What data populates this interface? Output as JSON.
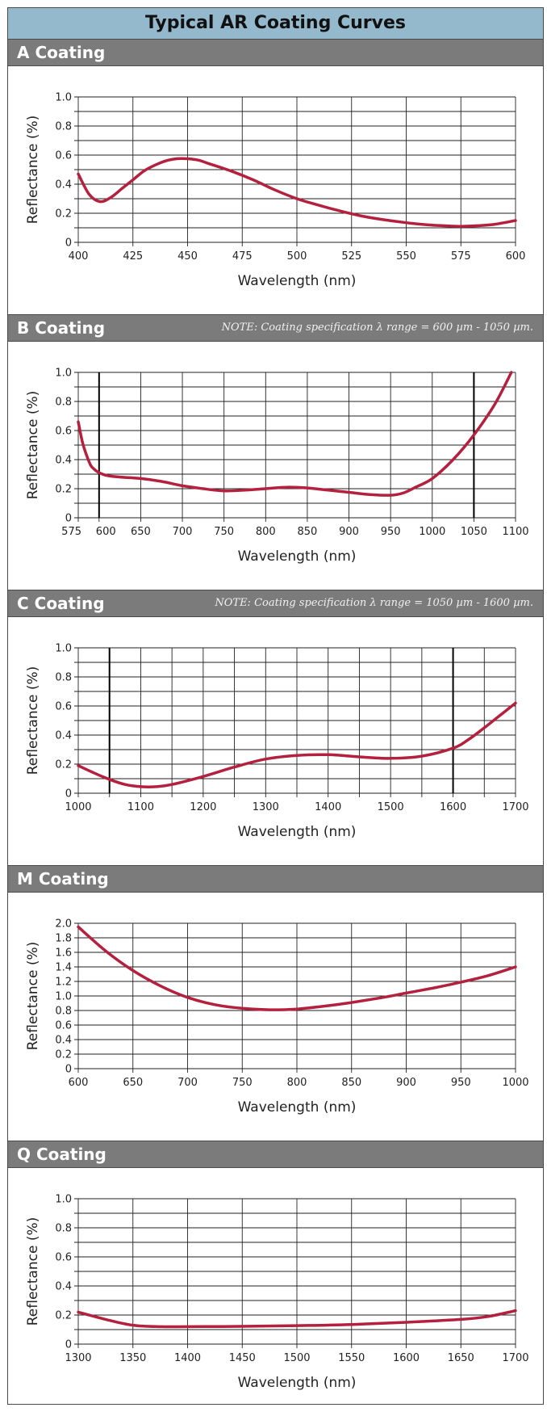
{
  "page": {
    "title": "Typical AR Coating Curves"
  },
  "sections": [
    {
      "title": "A Coating",
      "note": ""
    },
    {
      "title": "B Coating",
      "note": "NOTE: Coating specification λ range = 600 µm - 1050 µm."
    },
    {
      "title": "C Coating",
      "note": "NOTE: Coating specification λ range = 1050 µm - 1600 µm."
    },
    {
      "title": "M Coating",
      "note": ""
    },
    {
      "title": "Q Coating",
      "note": ""
    }
  ],
  "colors": {
    "curve": "#b3213e",
    "header_bg": "#7b7b7b",
    "title_bg": "#94b8cc",
    "grid": "#222222"
  },
  "chart_data": [
    {
      "type": "line",
      "title": "A Coating",
      "xlabel": "Wavelength (nm)",
      "ylabel": "Reflectance (%)",
      "xlim": [
        400,
        600
      ],
      "ylim": [
        0,
        1.0
      ],
      "xticks": [
        400,
        425,
        450,
        475,
        500,
        525,
        550,
        575,
        600
      ],
      "xtick_labels": [
        "400",
        "425",
        "450",
        "475",
        "500",
        "525",
        "550",
        "575",
        "600"
      ],
      "yticks": [
        0,
        0.2,
        0.4,
        0.6,
        0.8,
        1.0
      ],
      "ytick_labels": [
        "0",
        "0.2",
        "0.4",
        "0.6",
        "0.8",
        "1.0"
      ],
      "x_grid": [
        400,
        425,
        450,
        475,
        500,
        525,
        550,
        575,
        600
      ],
      "y_grid": [
        0,
        0.1,
        0.2,
        0.3,
        0.4,
        0.5,
        0.6,
        0.7,
        0.8,
        0.9,
        1.0
      ],
      "spec_lines": [],
      "grid": true,
      "series": [
        {
          "x": [
            400,
            405,
            410,
            415,
            420,
            425,
            430,
            435,
            440,
            445,
            450,
            455,
            460,
            470,
            480,
            490,
            500,
            510,
            520,
            530,
            540,
            550,
            560,
            570,
            575,
            580,
            590,
            600
          ],
          "y": [
            0.47,
            0.33,
            0.28,
            0.31,
            0.37,
            0.43,
            0.49,
            0.53,
            0.56,
            0.575,
            0.575,
            0.565,
            0.54,
            0.49,
            0.43,
            0.36,
            0.3,
            0.255,
            0.215,
            0.18,
            0.155,
            0.135,
            0.12,
            0.112,
            0.11,
            0.112,
            0.123,
            0.15
          ]
        }
      ]
    },
    {
      "type": "line",
      "title": "B Coating",
      "xlabel": "Wavelength (nm)",
      "ylabel": "Reflectance (%)",
      "xlim": [
        575,
        1100
      ],
      "ylim": [
        0,
        1.0
      ],
      "xticks": [
        575,
        600,
        650,
        700,
        750,
        800,
        850,
        900,
        950,
        1000,
        1050,
        1100
      ],
      "xtick_labels": [
        "575",
        "600",
        "650",
        "700",
        "750",
        "800",
        "850",
        "900",
        "950",
        "1000",
        "1050",
        "1100"
      ],
      "yticks": [
        0,
        0.2,
        0.4,
        0.6,
        0.8,
        1.0
      ],
      "ytick_labels": [
        "0",
        "0.2",
        "0.4",
        "0.6",
        "0.8",
        "1.0"
      ],
      "x_grid": [
        575,
        600,
        650,
        700,
        750,
        800,
        850,
        900,
        950,
        1000,
        1050,
        1100
      ],
      "y_grid": [
        0,
        0.1,
        0.2,
        0.3,
        0.4,
        0.5,
        0.6,
        0.7,
        0.8,
        0.9,
        1.0
      ],
      "spec_lines": [
        600,
        1050
      ],
      "grid": true,
      "series": [
        {
          "x": [
            575,
            580,
            585,
            590,
            595,
            600,
            610,
            625,
            650,
            675,
            700,
            725,
            750,
            775,
            800,
            825,
            850,
            875,
            900,
            925,
            950,
            965,
            980,
            1000,
            1025,
            1050,
            1075,
            1095
          ],
          "y": [
            0.66,
            0.52,
            0.43,
            0.36,
            0.33,
            0.31,
            0.29,
            0.28,
            0.27,
            0.25,
            0.22,
            0.2,
            0.185,
            0.19,
            0.2,
            0.21,
            0.205,
            0.19,
            0.175,
            0.16,
            0.155,
            0.17,
            0.21,
            0.27,
            0.4,
            0.57,
            0.78,
            1.0
          ]
        }
      ]
    },
    {
      "type": "line",
      "title": "C Coating",
      "xlabel": "Wavelength (nm)",
      "ylabel": "Reflectance (%)",
      "xlim": [
        1000,
        1700
      ],
      "ylim": [
        0,
        1.0
      ],
      "xticks": [
        1000,
        1100,
        1200,
        1300,
        1400,
        1500,
        1600,
        1700
      ],
      "xtick_labels": [
        "1000",
        "1100",
        "1200",
        "1300",
        "1400",
        "1500",
        "1600",
        "1700"
      ],
      "yticks": [
        0,
        0.2,
        0.4,
        0.6,
        0.8,
        1.0
      ],
      "ytick_labels": [
        "0",
        "0.2",
        "0.4",
        "0.6",
        "0.8",
        "1.0"
      ],
      "x_grid": [
        1000,
        1050,
        1100,
        1150,
        1200,
        1250,
        1300,
        1350,
        1400,
        1450,
        1500,
        1550,
        1600,
        1650,
        1700
      ],
      "y_grid": [
        0,
        0.1,
        0.2,
        0.3,
        0.4,
        0.5,
        0.6,
        0.7,
        0.8,
        0.9,
        1.0
      ],
      "spec_lines": [
        1050,
        1600
      ],
      "grid": true,
      "series": [
        {
          "x": [
            1000,
            1025,
            1050,
            1075,
            1100,
            1125,
            1150,
            1200,
            1250,
            1300,
            1350,
            1400,
            1450,
            1500,
            1550,
            1600,
            1625,
            1650,
            1675,
            1700
          ],
          "y": [
            0.19,
            0.14,
            0.095,
            0.06,
            0.045,
            0.045,
            0.06,
            0.115,
            0.18,
            0.235,
            0.26,
            0.265,
            0.25,
            0.24,
            0.255,
            0.31,
            0.37,
            0.45,
            0.535,
            0.62
          ]
        }
      ]
    },
    {
      "type": "line",
      "title": "M Coating",
      "xlabel": "Wavelength (nm)",
      "ylabel": "Reflectance (%)",
      "xlim": [
        600,
        1000
      ],
      "ylim": [
        0,
        2.0
      ],
      "xticks": [
        600,
        650,
        700,
        750,
        800,
        850,
        900,
        950,
        1000
      ],
      "xtick_labels": [
        "600",
        "650",
        "700",
        "750",
        "800",
        "850",
        "900",
        "950",
        "1000"
      ],
      "yticks": [
        0,
        0.2,
        0.4,
        0.6,
        0.8,
        1.0,
        1.2,
        1.4,
        1.6,
        1.8,
        2.0
      ],
      "ytick_labels": [
        "0",
        "0.2",
        "0.4",
        "0.6",
        "0.8",
        "1.0",
        "1.2",
        "1.4",
        "1.6",
        "1.8",
        "2.0"
      ],
      "x_grid": [
        600,
        650,
        700,
        750,
        800,
        850,
        900,
        950,
        1000
      ],
      "y_grid": [
        0,
        0.2,
        0.4,
        0.6,
        0.8,
        1.0,
        1.2,
        1.4,
        1.6,
        1.8,
        2.0
      ],
      "spec_lines": [],
      "grid": true,
      "series": [
        {
          "x": [
            600,
            625,
            650,
            675,
            700,
            725,
            750,
            775,
            800,
            825,
            850,
            875,
            900,
            925,
            950,
            975,
            1000
          ],
          "y": [
            1.95,
            1.62,
            1.35,
            1.14,
            0.98,
            0.88,
            0.83,
            0.81,
            0.82,
            0.86,
            0.91,
            0.97,
            1.04,
            1.11,
            1.19,
            1.28,
            1.4
          ]
        }
      ]
    },
    {
      "type": "line",
      "title": "Q Coating",
      "xlabel": "Wavelength (nm)",
      "ylabel": "Reflectance (%)",
      "xlim": [
        1300,
        1700
      ],
      "ylim": [
        0,
        1.0
      ],
      "xticks": [
        1300,
        1350,
        1400,
        1450,
        1500,
        1550,
        1600,
        1650,
        1700
      ],
      "xtick_labels": [
        "1300",
        "1350",
        "1400",
        "1450",
        "1500",
        "1550",
        "1600",
        "1650",
        "1700"
      ],
      "yticks": [
        0,
        0.2,
        0.4,
        0.6,
        0.8,
        1.0
      ],
      "ytick_labels": [
        "0",
        "0.2",
        "0.4",
        "0.6",
        "0.8",
        "1.0"
      ],
      "x_grid": [
        1300,
        1350,
        1400,
        1450,
        1500,
        1550,
        1600,
        1650,
        1700
      ],
      "y_grid": [
        0,
        0.1,
        0.2,
        0.3,
        0.4,
        0.5,
        0.6,
        0.7,
        0.8,
        0.9,
        1.0
      ],
      "spec_lines": [],
      "grid": true,
      "series": [
        {
          "x": [
            1300,
            1325,
            1350,
            1375,
            1400,
            1450,
            1500,
            1550,
            1600,
            1650,
            1675,
            1700
          ],
          "y": [
            0.22,
            0.17,
            0.13,
            0.12,
            0.12,
            0.122,
            0.127,
            0.135,
            0.15,
            0.17,
            0.19,
            0.23
          ]
        }
      ]
    }
  ]
}
